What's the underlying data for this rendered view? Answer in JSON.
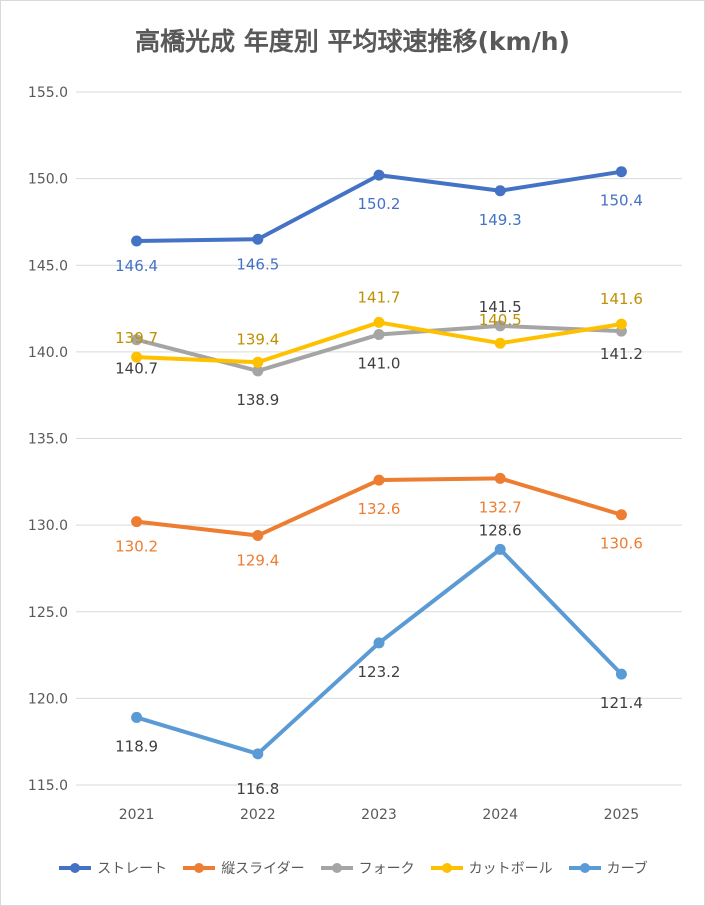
{
  "chart_data": {
    "type": "line",
    "title": "高橋光成 年度別 平均球速推移(km/h)",
    "categories": [
      "2021",
      "2022",
      "2023",
      "2024",
      "2025"
    ],
    "ylim": [
      115,
      155
    ],
    "yticks": [
      "115.0",
      "120.0",
      "125.0",
      "130.0",
      "135.0",
      "140.0",
      "145.0",
      "150.0",
      "155.0"
    ],
    "grid": true,
    "legend_position": "bottom",
    "series": [
      {
        "name": "ストレート",
        "color": "#4472c4",
        "label_color": "#4472c4",
        "values": [
          146.4,
          146.5,
          150.2,
          149.3,
          150.4
        ],
        "labels": [
          "146.4",
          "146.5",
          "150.2",
          "149.3",
          "150.4"
        ]
      },
      {
        "name": "縦スライダー",
        "color": "#ed7d31",
        "label_color": "#ed7d31",
        "values": [
          130.2,
          129.4,
          132.6,
          132.7,
          130.6
        ],
        "labels": [
          "130.2",
          "129.4",
          "132.6",
          "132.7",
          "130.6"
        ]
      },
      {
        "name": "フォーク",
        "color": "#a5a5a5",
        "label_color": "#404040",
        "values": [
          140.7,
          138.9,
          141.0,
          141.5,
          141.2
        ],
        "labels": [
          "140.7",
          "138.9",
          "141.0",
          "141.5",
          "141.2"
        ]
      },
      {
        "name": "カットボール",
        "color": "#ffc000",
        "label_color": "#bf9000",
        "values": [
          139.7,
          139.4,
          141.7,
          140.5,
          141.6
        ],
        "labels": [
          "139.7",
          "139.4",
          "141.7",
          "140.5",
          "141.6"
        ]
      },
      {
        "name": "カーブ",
        "color": "#5b9bd5",
        "label_color": "#404040",
        "values": [
          118.9,
          116.8,
          123.2,
          128.6,
          121.4
        ],
        "labels": [
          "118.9",
          "116.8",
          "123.2",
          "128.6",
          "121.4"
        ]
      }
    ]
  }
}
